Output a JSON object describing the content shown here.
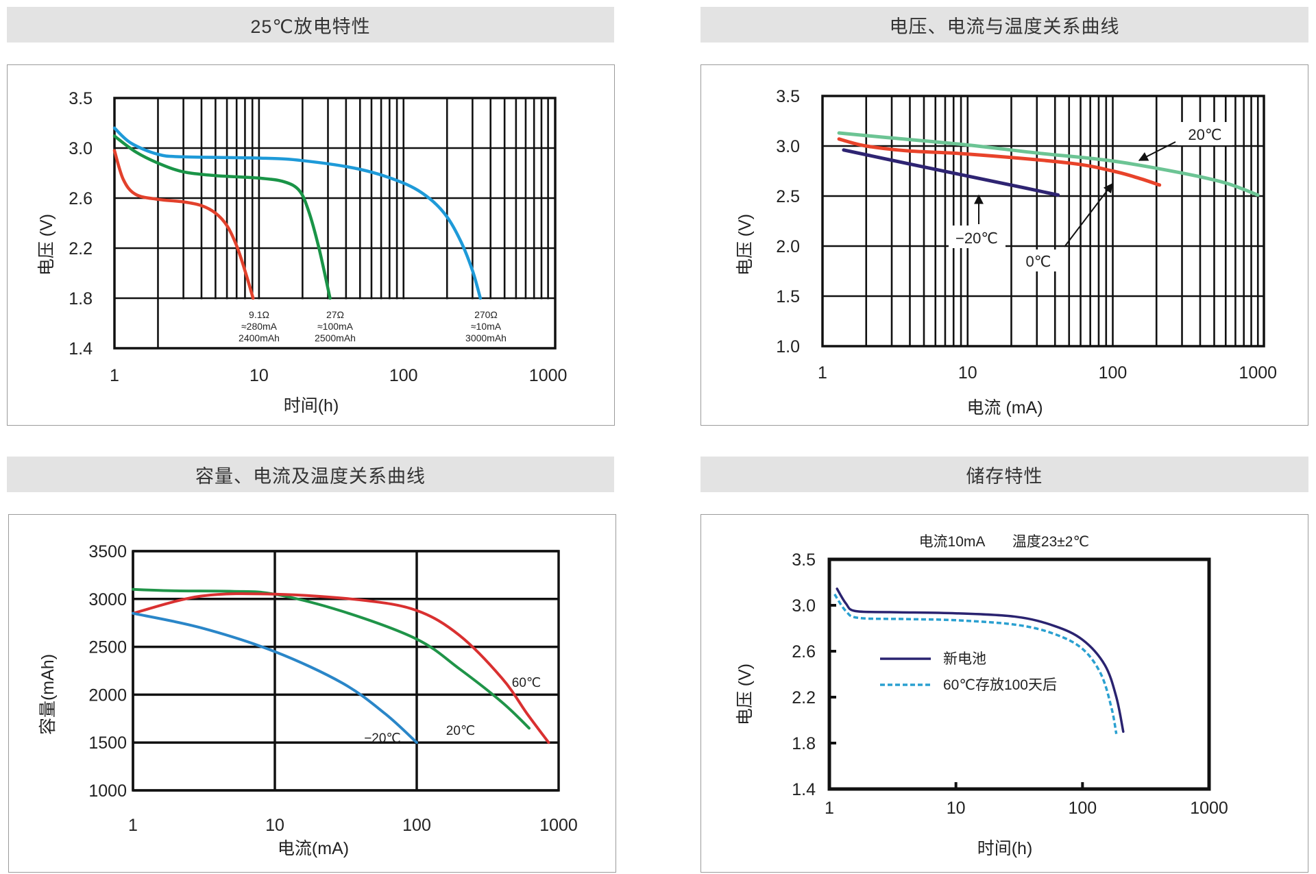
{
  "panels": [
    {
      "title": "25℃放电特性"
    },
    {
      "title": "电压、电流与温度关系曲线"
    },
    {
      "title": "容量、电流及温度关系曲线"
    },
    {
      "title": "储存特性"
    }
  ],
  "chart_data": [
    {
      "type": "line",
      "title": "25℃放电特性",
      "xlabel": "时间(h)",
      "ylabel": "电压 (V)",
      "xscale": "log",
      "xticks": [
        1,
        10,
        100,
        1000
      ],
      "yticks": [
        3.5,
        3.0,
        2.6,
        2.2,
        1.8,
        1.4
      ],
      "grid": true,
      "series": [
        {
          "name": "9.1Ω ≈280mA 2400mAh",
          "color": "#e2412c",
          "points": [
            [
              1,
              2.98
            ],
            [
              1.15,
              2.75
            ],
            [
              1.4,
              2.63
            ],
            [
              2,
              2.59
            ],
            [
              3,
              2.57
            ],
            [
              4,
              2.54
            ],
            [
              5,
              2.48
            ],
            [
              6,
              2.38
            ],
            [
              7,
              2.22
            ],
            [
              8,
              2.02
            ],
            [
              9.1,
              1.8
            ]
          ]
        },
        {
          "name": "27Ω ≈100mA 2500mAh",
          "color": "#1a9447",
          "points": [
            [
              1,
              3.12
            ],
            [
              1.4,
              2.97
            ],
            [
              2,
              2.88
            ],
            [
              3,
              2.81
            ],
            [
              5,
              2.78
            ],
            [
              10,
              2.76
            ],
            [
              15,
              2.73
            ],
            [
              19,
              2.66
            ],
            [
              22,
              2.5
            ],
            [
              26,
              2.2
            ],
            [
              31,
              1.8
            ]
          ]
        },
        {
          "name": "270Ω ≈10mA 3000mAh",
          "color": "#1e9ad8",
          "points": [
            [
              1,
              3.2
            ],
            [
              1.3,
              3.05
            ],
            [
              2,
              2.95
            ],
            [
              3,
              2.93
            ],
            [
              10,
              2.92
            ],
            [
              20,
              2.9
            ],
            [
              50,
              2.83
            ],
            [
              100,
              2.72
            ],
            [
              150,
              2.6
            ],
            [
              200,
              2.45
            ],
            [
              250,
              2.25
            ],
            [
              300,
              2.02
            ],
            [
              340,
              1.8
            ]
          ]
        }
      ],
      "annotations": [
        {
          "lines": [
            "9.1Ω",
            "≈280mA",
            "2400mAh"
          ]
        },
        {
          "lines": [
            "27Ω",
            "≈100mA",
            "2500mAh"
          ]
        },
        {
          "lines": [
            "270Ω",
            "≈10mA",
            "3000mAh"
          ]
        }
      ]
    },
    {
      "type": "line",
      "title": "电压、电流与温度关系曲线",
      "xlabel": "电流 (mA)",
      "ylabel": "电压 (V)",
      "xscale": "log",
      "xticks": [
        1,
        10,
        100,
        1000
      ],
      "yticks": [
        3.5,
        3.0,
        2.5,
        2.0,
        1.5,
        1.0
      ],
      "grid": true,
      "series": [
        {
          "name": "20℃",
          "color": "#6cc494",
          "points": [
            [
              1.3,
              3.13
            ],
            [
              3,
              3.08
            ],
            [
              10,
              3.01
            ],
            [
              30,
              2.93
            ],
            [
              100,
              2.85
            ],
            [
              300,
              2.73
            ],
            [
              600,
              2.63
            ],
            [
              1000,
              2.51
            ]
          ]
        },
        {
          "name": "0℃",
          "color": "#e8432a",
          "points": [
            [
              1.3,
              3.07
            ],
            [
              2,
              3.0
            ],
            [
              4,
              2.95
            ],
            [
              10,
              2.92
            ],
            [
              50,
              2.83
            ],
            [
              100,
              2.75
            ],
            [
              150,
              2.68
            ],
            [
              210,
              2.61
            ]
          ]
        },
        {
          "name": "-20℃",
          "color": "#2e2472",
          "points": [
            [
              1.4,
              2.96
            ],
            [
              4,
              2.82
            ],
            [
              10,
              2.7
            ],
            [
              25,
              2.58
            ],
            [
              42,
              2.51
            ]
          ]
        }
      ],
      "annotations": [
        {
          "text": "20℃"
        },
        {
          "text": "−20℃"
        },
        {
          "text": "0℃"
        }
      ]
    },
    {
      "type": "line",
      "title": "容量、电流及温度关系曲线",
      "xlabel": "电流(mA)",
      "ylabel": "容量(mAh)",
      "xscale": "log",
      "xticks": [
        1,
        10,
        100,
        1000
      ],
      "yticks": [
        3500,
        3000,
        2500,
        2000,
        1500,
        1000
      ],
      "grid": true,
      "series": [
        {
          "name": "20℃",
          "color": "#1f9448",
          "points": [
            [
              1,
              3100
            ],
            [
              2,
              3085
            ],
            [
              5,
              3080
            ],
            [
              10,
              3050
            ],
            [
              30,
              2870
            ],
            [
              100,
              2580
            ],
            [
              200,
              2270
            ],
            [
              400,
              1920
            ],
            [
              620,
              1650
            ]
          ]
        },
        {
          "name": "60℃",
          "color": "#d93030",
          "points": [
            [
              1,
              2850
            ],
            [
              3,
              3030
            ],
            [
              10,
              3050
            ],
            [
              40,
              2990
            ],
            [
              100,
              2880
            ],
            [
              200,
              2620
            ],
            [
              400,
              2170
            ],
            [
              600,
              1800
            ],
            [
              850,
              1500
            ]
          ]
        },
        {
          "name": "-20℃",
          "color": "#2a86c8",
          "points": [
            [
              1,
              2850
            ],
            [
              3,
              2700
            ],
            [
              10,
              2450
            ],
            [
              30,
              2120
            ],
            [
              60,
              1800
            ],
            [
              100,
              1500
            ]
          ]
        }
      ],
      "annotations": [
        {
          "text": "60℃"
        },
        {
          "text": "20℃"
        },
        {
          "text": "−20℃"
        }
      ]
    },
    {
      "type": "line",
      "title": "储存特性",
      "subtitle": [
        "电流10mA",
        "温度23±2℃"
      ],
      "xlabel": "时间(h)",
      "ylabel": "电压 (V)",
      "xscale": "log",
      "xticks": [
        1,
        10,
        100,
        1000
      ],
      "yticks": [
        3.5,
        3.0,
        2.6,
        2.2,
        1.8,
        1.4
      ],
      "grid": false,
      "series": [
        {
          "name": "新电池",
          "color": "#2a2370",
          "dashed": false,
          "points": [
            [
              1.15,
              3.18
            ],
            [
              1.35,
              3.02
            ],
            [
              1.6,
              2.95
            ],
            [
              3,
              2.94
            ],
            [
              10,
              2.93
            ],
            [
              30,
              2.9
            ],
            [
              60,
              2.82
            ],
            [
              100,
              2.7
            ],
            [
              150,
              2.48
            ],
            [
              185,
              2.2
            ],
            [
              210,
              1.9
            ]
          ]
        },
        {
          "name": "60℃存放100天后",
          "color": "#2aa0d0",
          "dashed": true,
          "points": [
            [
              1.1,
              3.12
            ],
            [
              1.35,
              2.95
            ],
            [
              1.7,
              2.89
            ],
            [
              4,
              2.88
            ],
            [
              10,
              2.87
            ],
            [
              30,
              2.83
            ],
            [
              60,
              2.75
            ],
            [
              100,
              2.62
            ],
            [
              140,
              2.4
            ],
            [
              170,
              2.1
            ],
            [
              185,
              1.88
            ]
          ]
        }
      ]
    }
  ]
}
